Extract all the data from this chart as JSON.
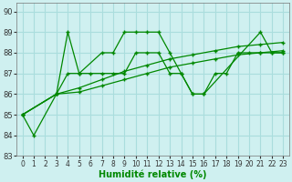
{
  "xlabel": "Humidité relative (%)",
  "xlim": [
    -0.5,
    23.5
  ],
  "ylim": [
    83,
    90.4
  ],
  "yticks": [
    83,
    84,
    85,
    86,
    87,
    88,
    89,
    90
  ],
  "xticks": [
    0,
    1,
    2,
    3,
    4,
    5,
    6,
    7,
    8,
    9,
    10,
    11,
    12,
    13,
    14,
    15,
    16,
    17,
    18,
    19,
    20,
    21,
    22,
    23
  ],
  "bg_color": "#cff0f0",
  "grid_color": "#aadddd",
  "line_color": "#008800",
  "line1_x": [
    0,
    1,
    3,
    4,
    5,
    7,
    8,
    9,
    10,
    11,
    12,
    13,
    14,
    15,
    16,
    21,
    22,
    23
  ],
  "line1_y": [
    85,
    84,
    86,
    89,
    87,
    88,
    88,
    89,
    89,
    89,
    89,
    88,
    87,
    86,
    86,
    89,
    88,
    88
  ],
  "line2_x": [
    0,
    3,
    4,
    5,
    6,
    7,
    8,
    9,
    10,
    11,
    12,
    13,
    14,
    15,
    16,
    17,
    18,
    19,
    20,
    21,
    22,
    23
  ],
  "line2_y": [
    85,
    86,
    87,
    87,
    87,
    87,
    87,
    87,
    88,
    88,
    88,
    87,
    87,
    86,
    86,
    87,
    87,
    88,
    88,
    88,
    88,
    88
  ],
  "line3_x": [
    0,
    3,
    5,
    7,
    9,
    11,
    13,
    15,
    17,
    19,
    21,
    23
  ],
  "line3_y": [
    85,
    86,
    86.3,
    86.7,
    87.1,
    87.4,
    87.7,
    87.9,
    88.1,
    88.3,
    88.4,
    88.5
  ],
  "line4_x": [
    0,
    3,
    5,
    7,
    9,
    11,
    13,
    15,
    17,
    19,
    21,
    23
  ],
  "line4_y": [
    85,
    86,
    86.1,
    86.4,
    86.7,
    87.0,
    87.3,
    87.5,
    87.7,
    87.9,
    88.0,
    88.1
  ]
}
